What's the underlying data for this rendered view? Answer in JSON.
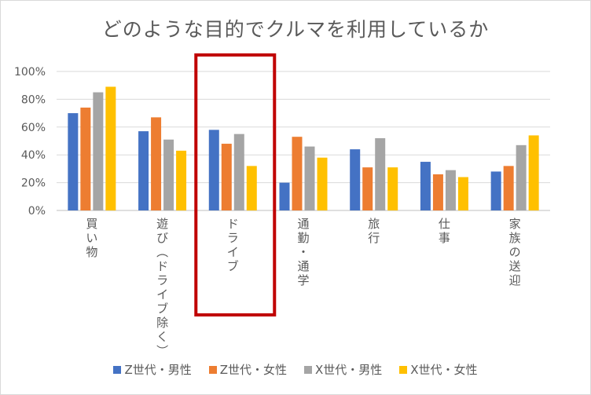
{
  "chart_data": {
    "type": "bar",
    "title": "どのような目的でクルマを利用しているか",
    "categories": [
      "買い物",
      "遊び(ドライブ除く)",
      "ドライブ",
      "通勤・通学",
      "旅行",
      "仕事",
      "家族の送迎"
    ],
    "series": [
      {
        "name": "Z世代・男性",
        "color": "#4472c4",
        "values": [
          70,
          57,
          58,
          20,
          44,
          35,
          28
        ]
      },
      {
        "name": "Z世代・女性",
        "color": "#ed7d31",
        "values": [
          74,
          67,
          48,
          53,
          31,
          26,
          32
        ]
      },
      {
        "name": "X世代・男性",
        "color": "#a5a5a5",
        "values": [
          85,
          51,
          55,
          46,
          52,
          29,
          47
        ]
      },
      {
        "name": "X世代・女性",
        "color": "#ffc000",
        "values": [
          89,
          43,
          32,
          38,
          31,
          24,
          54
        ]
      }
    ],
    "yticks": [
      "0%",
      "20%",
      "40%",
      "60%",
      "80%",
      "100%"
    ],
    "ylim": [
      0,
      100
    ],
    "grid": true,
    "legend_position": "bottom",
    "highlight": {
      "category": "ドライブ",
      "color": "#c00000"
    }
  }
}
